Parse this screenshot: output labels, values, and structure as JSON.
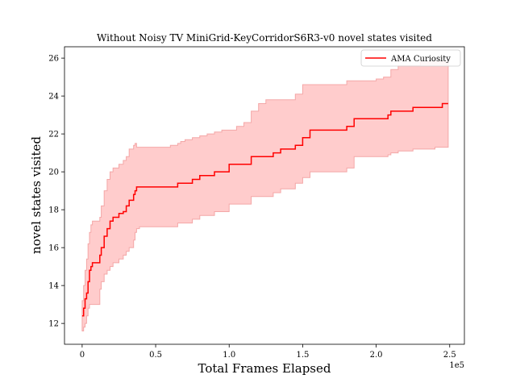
{
  "chart_data": {
    "type": "line",
    "title": "Without Noisy TV MiniGrid-KeyCorridorS6R3-v0 novel states visited",
    "xlabel": "Total Frames Elapsed",
    "ylabel": "novel states visited",
    "x_offset_label": "1e5",
    "xlim": [
      -0.12,
      2.6
    ],
    "ylim": [
      10.9,
      26.6
    ],
    "xticks": [
      0,
      0.5,
      1.0,
      1.5,
      2.0,
      2.5
    ],
    "xtick_labels": [
      "0",
      "0.5",
      "1.0",
      "1.5",
      "2.0",
      "2.5"
    ],
    "yticks": [
      12,
      14,
      16,
      18,
      20,
      22,
      24,
      26
    ],
    "ytick_labels": [
      "12",
      "14",
      "16",
      "18",
      "20",
      "22",
      "24",
      "26"
    ],
    "grid": false,
    "legend_position": "upper-right",
    "series": [
      {
        "name": "AMA Curiosity",
        "color": "#ff0000",
        "band_color": "#ffcccc",
        "band_edge_color": "#f4a7a7",
        "x": [
          0.0,
          0.01,
          0.02,
          0.03,
          0.04,
          0.05,
          0.06,
          0.07,
          0.08,
          0.1,
          0.12,
          0.13,
          0.15,
          0.17,
          0.19,
          0.21,
          0.25,
          0.28,
          0.3,
          0.32,
          0.35,
          0.36,
          0.37,
          0.39,
          0.41,
          0.45,
          0.5,
          0.55,
          0.6,
          0.65,
          0.67,
          0.7,
          0.75,
          0.8,
          0.85,
          0.9,
          0.95,
          1.0,
          1.05,
          1.1,
          1.15,
          1.2,
          1.25,
          1.3,
          1.35,
          1.4,
          1.45,
          1.5,
          1.55,
          1.6,
          1.65,
          1.7,
          1.75,
          1.8,
          1.85,
          1.9,
          1.95,
          2.0,
          2.05,
          2.08,
          2.1,
          2.15,
          2.2,
          2.25,
          2.3,
          2.35,
          2.4,
          2.45,
          2.49
        ],
        "mean": [
          12.4,
          12.8,
          13.3,
          13.6,
          14.2,
          14.8,
          15.0,
          15.2,
          15.2,
          15.2,
          15.6,
          16.0,
          16.6,
          17.0,
          17.4,
          17.6,
          17.8,
          17.9,
          18.2,
          18.5,
          18.8,
          19.0,
          19.2,
          19.2,
          19.2,
          19.2,
          19.2,
          19.2,
          19.2,
          19.4,
          19.4,
          19.4,
          19.6,
          19.8,
          19.8,
          20.0,
          20.0,
          20.4,
          20.4,
          20.4,
          20.8,
          20.8,
          20.8,
          21.0,
          21.2,
          21.2,
          21.4,
          21.8,
          22.2,
          22.2,
          22.2,
          22.2,
          22.2,
          22.4,
          22.8,
          22.8,
          22.8,
          22.8,
          22.8,
          23.0,
          23.2,
          23.2,
          23.2,
          23.4,
          23.4,
          23.4,
          23.4,
          23.6,
          23.6
        ],
        "lower": [
          11.6,
          11.8,
          12.0,
          12.4,
          12.8,
          13.0,
          13.0,
          13.0,
          13.0,
          13.0,
          13.8,
          14.2,
          14.6,
          14.8,
          15.0,
          15.2,
          15.4,
          15.6,
          15.8,
          16.0,
          16.4,
          16.8,
          17.0,
          17.1,
          17.1,
          17.1,
          17.1,
          17.1,
          17.1,
          17.3,
          17.3,
          17.3,
          17.5,
          17.7,
          17.7,
          17.9,
          17.9,
          18.3,
          18.3,
          18.3,
          18.7,
          18.7,
          18.7,
          18.9,
          19.1,
          19.1,
          19.4,
          19.7,
          20.0,
          20.0,
          20.0,
          20.0,
          20.0,
          20.2,
          20.8,
          20.8,
          20.8,
          20.8,
          20.8,
          20.9,
          21.0,
          21.1,
          21.1,
          21.2,
          21.2,
          21.2,
          21.3,
          21.3,
          21.3
        ],
        "upper": [
          13.2,
          14.0,
          14.8,
          15.4,
          16.2,
          16.8,
          17.2,
          17.4,
          17.4,
          17.4,
          17.6,
          18.2,
          19.0,
          19.6,
          20.0,
          20.2,
          20.4,
          20.6,
          20.8,
          21.2,
          21.4,
          21.5,
          21.3,
          21.3,
          21.3,
          21.3,
          21.3,
          21.3,
          21.4,
          21.5,
          21.6,
          21.7,
          21.8,
          21.9,
          22.0,
          22.1,
          22.2,
          22.2,
          22.4,
          22.6,
          23.2,
          23.6,
          23.8,
          23.8,
          23.8,
          23.8,
          24.1,
          24.6,
          24.6,
          24.6,
          24.6,
          24.6,
          24.6,
          24.8,
          24.8,
          24.8,
          24.8,
          24.9,
          25.0,
          25.0,
          25.4,
          25.6,
          25.6,
          25.6,
          25.8,
          25.8,
          25.8,
          25.8,
          25.8
        ]
      }
    ]
  }
}
